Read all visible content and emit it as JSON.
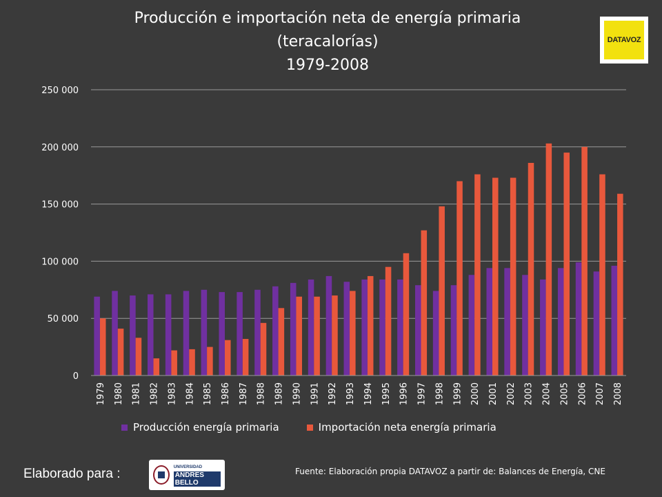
{
  "chart_data": {
    "type": "bar",
    "title": [
      "Producción e importación neta de energía primaria",
      "(teracalorías)",
      "1979-2008"
    ],
    "xlabel": "",
    "ylabel": "",
    "ylim": [
      0,
      250000
    ],
    "yticks": [
      0,
      50000,
      100000,
      150000,
      200000,
      250000
    ],
    "ytick_labels": [
      "0",
      "50 000",
      "100 000",
      "150 000",
      "200 000",
      "250 000"
    ],
    "grid": true,
    "legend_position": "bottom",
    "categories": [
      "1979",
      "1980",
      "1981",
      "1982",
      "1983",
      "1984",
      "1985",
      "1986",
      "1987",
      "1988",
      "1989",
      "1990",
      "1991",
      "1992",
      "1993",
      "1994",
      "1995",
      "1996",
      "1997",
      "1998",
      "1999",
      "2000",
      "2001",
      "2002",
      "2003",
      "2004",
      "2005",
      "2006",
      "2007",
      "2008"
    ],
    "series": [
      {
        "name": "Producción energía primaria",
        "color": "#7030a0",
        "values": [
          69000,
          74000,
          70000,
          71000,
          71000,
          74000,
          75000,
          73000,
          73000,
          75000,
          78000,
          81000,
          84000,
          87000,
          82000,
          84000,
          84000,
          84000,
          79000,
          74000,
          79000,
          88000,
          94000,
          94000,
          88000,
          84000,
          94000,
          99000,
          91000,
          96000
        ]
      },
      {
        "name": "Importación neta energía primaria",
        "color": "#e8583c",
        "values": [
          50000,
          41000,
          33000,
          15000,
          22000,
          23000,
          25000,
          31000,
          32000,
          46000,
          59000,
          69000,
          69000,
          70000,
          74000,
          87000,
          95000,
          107000,
          127000,
          148000,
          170000,
          176000,
          173000,
          173000,
          186000,
          203000,
          195000,
          200000,
          176000,
          159000
        ]
      }
    ]
  },
  "footer": {
    "made_for": "Elaborado para :",
    "source": "Fuente: Elaboración propia DATAVOZ a partir de: Balances de Energía, CNE",
    "logo_datavoz": "DATAVOZ",
    "logo_unab_small": "UNIVERSIDAD",
    "logo_unab_big": "ANDRES BELLO"
  },
  "colors": {
    "background": "#3a3a3a",
    "grid": "#9a9a9a",
    "text": "#ffffff"
  }
}
